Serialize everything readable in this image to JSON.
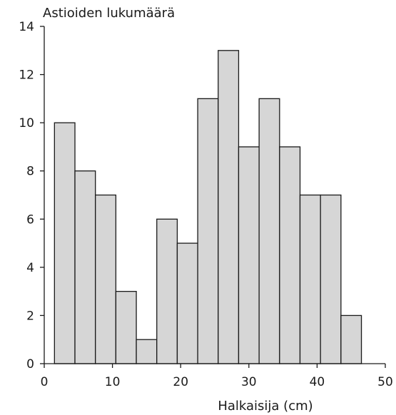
{
  "chart_data": {
    "type": "bar",
    "subtype": "histogram",
    "ylabel": "Astioiden lukumäärä",
    "xlabel": "Halkaisija (cm)",
    "xlim": [
      0,
      50
    ],
    "ylim": [
      0,
      14
    ],
    "xticks": [
      0,
      10,
      20,
      30,
      40,
      50
    ],
    "yticks": [
      0,
      2,
      4,
      6,
      8,
      10,
      12,
      14
    ],
    "bin_width": 3,
    "bins": [
      {
        "x0": 1.5,
        "x1": 4.5,
        "value": 10
      },
      {
        "x0": 4.5,
        "x1": 7.5,
        "value": 8
      },
      {
        "x0": 7.5,
        "x1": 10.5,
        "value": 7
      },
      {
        "x0": 10.5,
        "x1": 13.5,
        "value": 3
      },
      {
        "x0": 13.5,
        "x1": 16.5,
        "value": 1
      },
      {
        "x0": 16.5,
        "x1": 19.5,
        "value": 6
      },
      {
        "x0": 19.5,
        "x1": 22.5,
        "value": 5
      },
      {
        "x0": 22.5,
        "x1": 25.5,
        "value": 11
      },
      {
        "x0": 25.5,
        "x1": 28.5,
        "value": 13
      },
      {
        "x0": 28.5,
        "x1": 31.5,
        "value": 9
      },
      {
        "x0": 31.5,
        "x1": 34.5,
        "value": 11
      },
      {
        "x0": 34.5,
        "x1": 37.5,
        "value": 9
      },
      {
        "x0": 37.5,
        "x1": 40.5,
        "value": 7
      },
      {
        "x0": 40.5,
        "x1": 43.5,
        "value": 7
      },
      {
        "x0": 43.5,
        "x1": 46.5,
        "value": 2
      }
    ],
    "grid": false,
    "colors": {
      "bar_fill": "#d6d6d6",
      "bar_stroke": "#1a1a1a"
    }
  }
}
